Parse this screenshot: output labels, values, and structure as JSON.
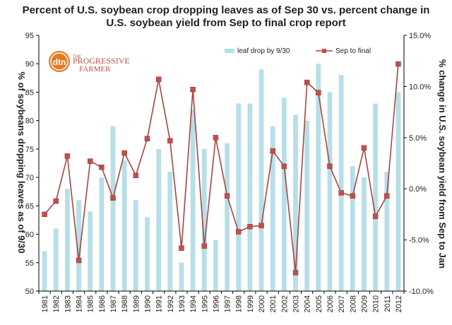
{
  "title_line1": "Percent of U.S. soybean crop dropping leaves as of Sep 30 vs. percent change in",
  "title_line2": "U.S. soybean yield from Sep to final crop report",
  "logo": {
    "mark": "dtn",
    "brand_line1": "THE",
    "brand_line2": "PROGRESSIVE",
    "brand_line3": "FARMER"
  },
  "colors": {
    "bars": "#b7dfe8",
    "line": "#a94442",
    "marker": "#c0504d",
    "axis": "#000000"
  },
  "chart_data": {
    "type": "bar+line",
    "categories": [
      "1981",
      "1982",
      "1983",
      "1984",
      "1985",
      "1986",
      "1987",
      "1988",
      "1989",
      "1990",
      "1991",
      "1992",
      "1993",
      "1994",
      "1995",
      "1996",
      "1997",
      "1998",
      "1999",
      "2000",
      "2001",
      "2002",
      "2003",
      "2004",
      "2005",
      "2006",
      "2007",
      "2008",
      "2009",
      "2010",
      "2011",
      "2012"
    ],
    "series": [
      {
        "name": "leaf drop by 9/30",
        "type": "bar",
        "axis": "left",
        "values": [
          57,
          61,
          68,
          66,
          64,
          70,
          79,
          73,
          66,
          63,
          75,
          71,
          55,
          82,
          75,
          59,
          76,
          83,
          83,
          89,
          79,
          84,
          81,
          80,
          90,
          85,
          88,
          72,
          70,
          83,
          71,
          85
        ]
      },
      {
        "name": "Sep to final",
        "type": "line",
        "axis": "right",
        "values": [
          -2.5,
          -1.2,
          3.2,
          -7.0,
          2.7,
          2.1,
          -0.9,
          3.5,
          1.3,
          4.9,
          10.7,
          4.7,
          -5.8,
          9.7,
          -5.6,
          5.0,
          -0.7,
          -4.2,
          -3.7,
          -3.6,
          3.7,
          2.2,
          -8.2,
          10.4,
          9.4,
          2.2,
          -0.4,
          -0.7,
          4.0,
          -2.7,
          -0.7,
          12.2
        ]
      }
    ],
    "y_left": {
      "label": "% of soybeans dropping leaves as of 9/30",
      "min": 50,
      "max": 95,
      "ticks": [
        "50",
        "55",
        "60",
        "65",
        "70",
        "75",
        "80",
        "85",
        "90",
        "95"
      ]
    },
    "y_right": {
      "label": "% change in U.S. soybean yield from Sep to Jan",
      "min": -10,
      "max": 15,
      "ticks": [
        "-10.0%",
        "-5.0%",
        "0.0%",
        "5.0%",
        "10.0%",
        "15.0%"
      ]
    },
    "legend_position": "top-right",
    "grid": false
  }
}
